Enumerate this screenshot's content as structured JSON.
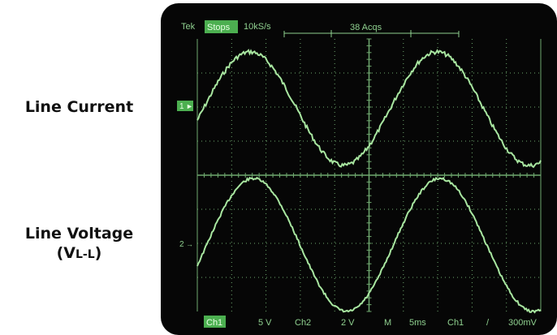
{
  "labels": {
    "current": "Line Current",
    "voltage_main": "Line Voltage",
    "voltage_sub_open": "(V",
    "voltage_sub_sub": "L-L",
    "voltage_sub_close": ")"
  },
  "scope": {
    "top_bar": {
      "brand": "Tek",
      "run_state": "Stops",
      "sample_rate": "10kS/s",
      "acquisitions": "38 Acqs"
    },
    "markers": {
      "ch1": "1",
      "ch2": "2"
    },
    "bottom_bar": {
      "ch1_label": "Ch1",
      "ch1_scale": "5 V",
      "ch2_label": "Ch2",
      "ch2_scale": "2 V",
      "mode": "M",
      "timebase": "5ms",
      "trigger_source": "Ch1",
      "trigger_slope": "/",
      "trigger_level": "300mV"
    },
    "colors": {
      "trace": "#a8e6a0",
      "grid": "#6fa86f",
      "highlight_bg": "#4caf50",
      "screen": "#060606"
    }
  }
}
